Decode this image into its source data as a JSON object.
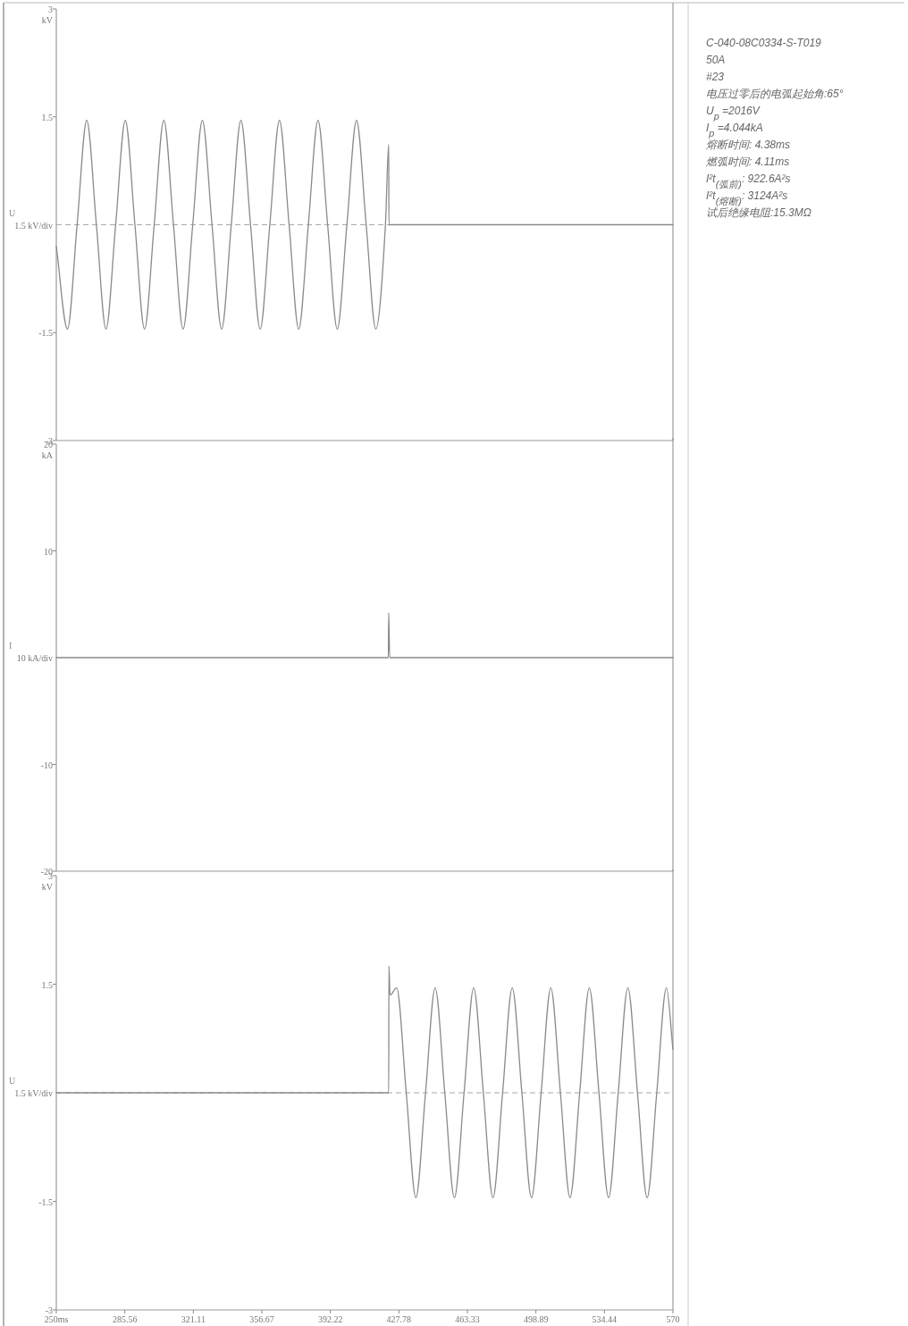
{
  "chart_data": [
    {
      "type": "line",
      "ylabel": "kV",
      "xlim": [
        250,
        570
      ],
      "ylim": [
        -3,
        3
      ],
      "yticks": [
        3,
        1.5,
        -1.5,
        -3
      ],
      "tick_labels": "y",
      "annotations": [
        "1.5 kV/div"
      ],
      "ref_lines": [
        {
          "axis": "y",
          "value": 0,
          "color": "#aaaaaa",
          "line_style": "dashed"
        }
      ],
      "x": [
        250,
        255.8,
        260.8,
        265.8,
        270.8,
        275.8,
        280.8,
        285.8,
        290.8,
        295.8,
        300.8,
        305.8,
        310.8,
        315.8,
        320.8,
        325.8,
        330.8,
        335.8,
        340.8,
        345.8,
        350.8,
        355.8,
        360.8,
        365.8,
        370.8,
        375.8,
        380.8,
        385.8,
        390.8,
        395.8,
        400.8,
        405.8,
        410.8,
        415.8,
        420.8,
        422.5,
        422.6,
        570
      ],
      "series": [
        {
          "name": "U",
          "color": "#8a8a8a",
          "values": [
            -0.3,
            -1.45,
            0,
            1.45,
            0,
            -1.45,
            0,
            1.45,
            0,
            -1.45,
            0,
            1.45,
            0,
            -1.45,
            0,
            1.45,
            0,
            -1.45,
            0,
            1.45,
            0,
            -1.45,
            0,
            1.45,
            0,
            -1.45,
            0,
            1.45,
            0,
            -1.45,
            0,
            1.45,
            0,
            -1.45,
            0,
            1.12,
            0,
            0
          ]
        }
      ]
    },
    {
      "type": "line",
      "ylabel": "kA",
      "xlim": [
        250,
        570
      ],
      "ylim": [
        -20,
        20
      ],
      "yticks": [
        20,
        10,
        -10,
        -20
      ],
      "tick_labels": "y",
      "annotations": [
        "10 kA/div"
      ],
      "x": [
        250,
        422.3,
        422.5,
        423.0,
        570
      ],
      "series": [
        {
          "name": "I",
          "color": "#8a8a8a",
          "values": [
            0,
            0,
            4.2,
            0,
            0
          ]
        }
      ]
    },
    {
      "type": "line",
      "ylabel": "kV",
      "xlim": [
        250,
        570
      ],
      "ylim": [
        -3,
        3
      ],
      "yticks": [
        3,
        1.5,
        -1.5,
        -3
      ],
      "annotations": [
        "1.5 kV/div"
      ],
      "xticks": [
        {
          "value": 250,
          "label": "250ms"
        },
        285.56,
        321.11,
        356.67,
        392.22,
        427.78,
        463.33,
        498.89,
        534.44,
        570
      ],
      "ref_lines": [
        {
          "axis": "y",
          "value": 0,
          "color": "#aaaaaa",
          "line_style": "dashed"
        }
      ],
      "x": [
        250,
        422.5,
        422.6,
        423.2,
        426.6,
        431.6,
        436.6,
        441.6,
        446.6,
        451.6,
        456.6,
        461.6,
        466.6,
        471.6,
        476.6,
        481.6,
        486.6,
        491.6,
        496.6,
        501.6,
        506.6,
        511.6,
        516.6,
        521.6,
        526.6,
        531.6,
        536.6,
        541.6,
        546.6,
        551.6,
        556.6,
        561.6,
        566.6,
        570
      ],
      "series": [
        {
          "name": "U",
          "color": "#8a8a8a",
          "values": [
            0,
            0,
            1.75,
            1.35,
            1.45,
            0,
            -1.45,
            0,
            1.45,
            0,
            -1.45,
            0,
            1.45,
            0,
            -1.45,
            0,
            1.45,
            0,
            -1.45,
            0,
            1.45,
            0,
            -1.45,
            0,
            1.45,
            0,
            -1.45,
            0,
            1.45,
            0,
            -1.45,
            0,
            1.45,
            0.6
          ]
        }
      ]
    },
    {
      "type": "other",
      "annotations": [
        "C-040-08C0334-S-T019",
        "50A",
        "#23",
        "电压过零后的电弧起始角:65°",
        "U$_{p}$ =2016V",
        "I$_{p}$ =4.044kA",
        "熔断时间: 4.38ms",
        "燃弧时间: 4.11ms",
        "I²t$_{(弧前)}$: 922.6A²s",
        "I²t$_{(熔断)}$: 3124A²s",
        "试后绝缘电阻:15.3MΩ"
      ]
    }
  ]
}
